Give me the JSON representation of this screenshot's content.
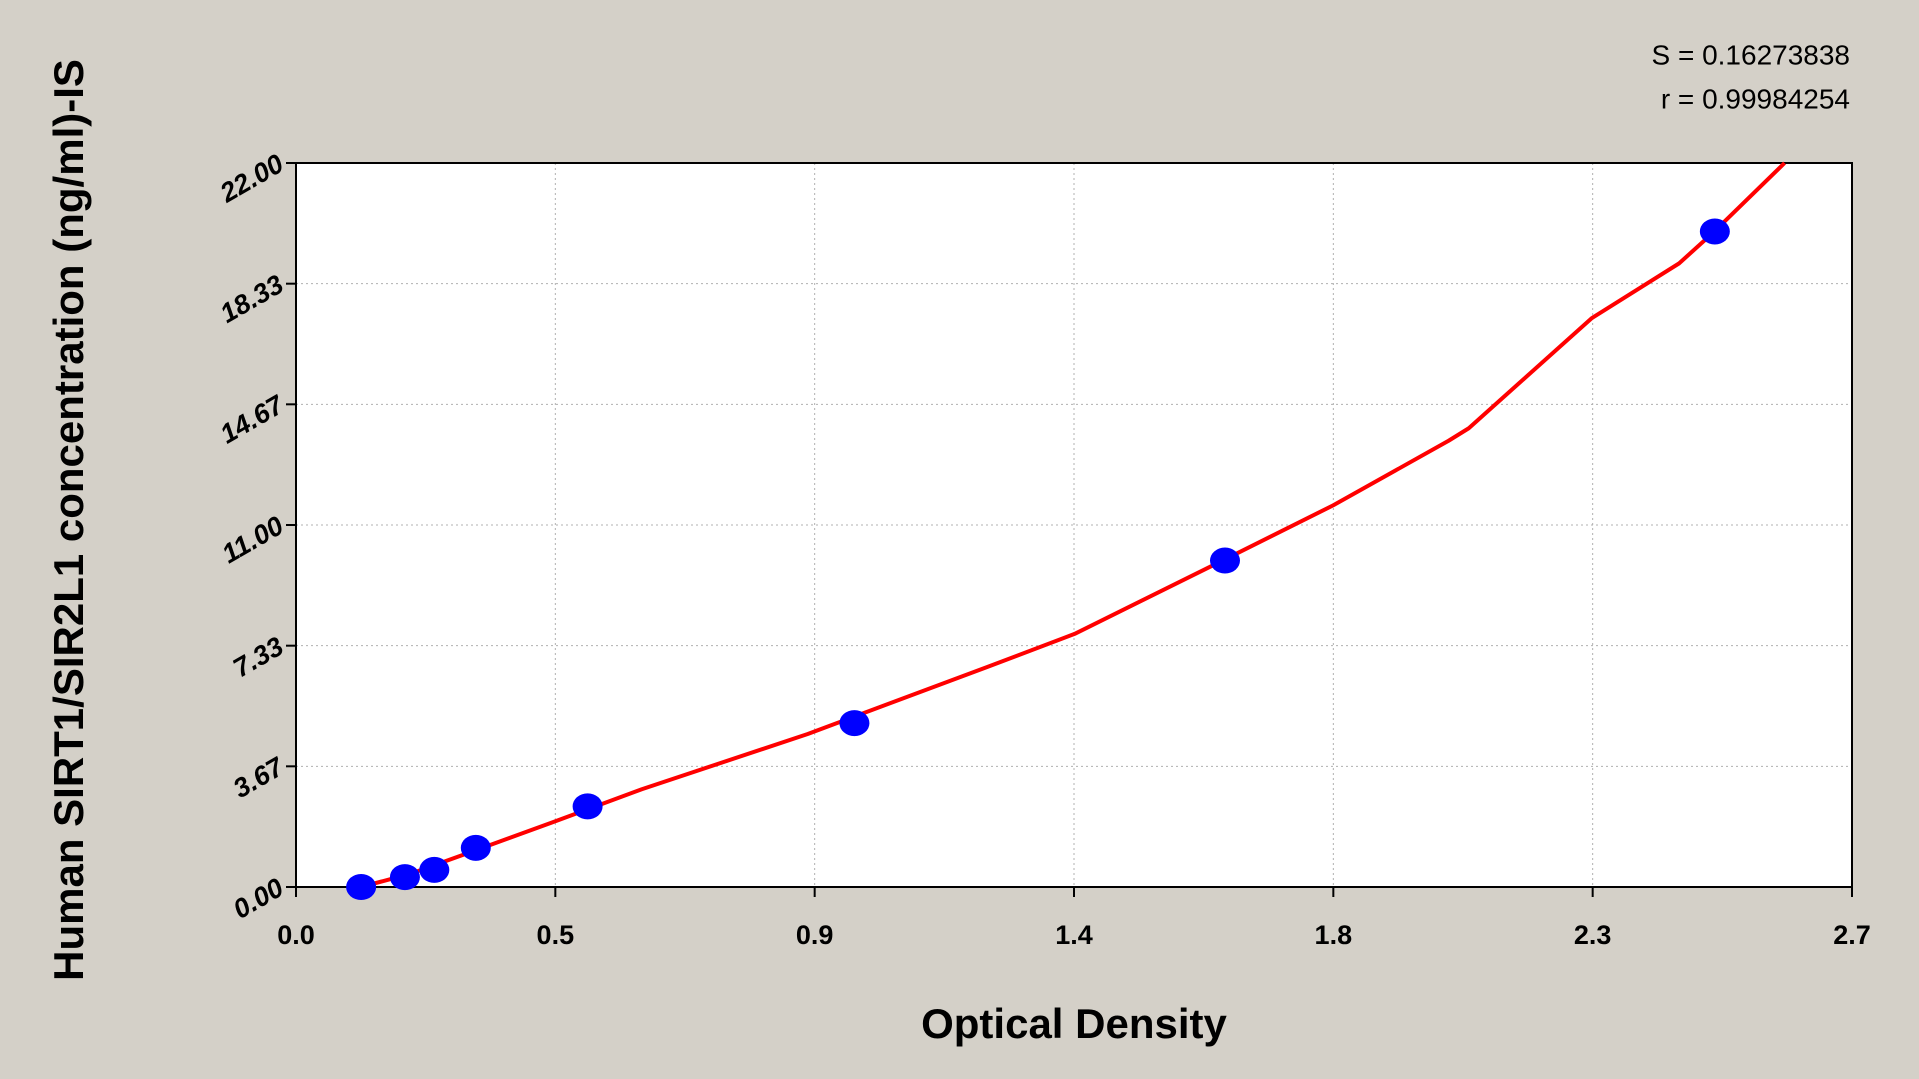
{
  "chart_data": {
    "type": "scatter",
    "annotations": [
      "S = 0.16273838",
      "r = 0.99984254"
    ],
    "x_label": "Optical Density",
    "y_label": "Human SIRT1/SIR2L1 concentration (ng/ml)-IS",
    "xlim": [
      0,
      2.7
    ],
    "xticks": [
      {
        "value": 0,
        "label": "0.0"
      },
      {
        "value": 0.45,
        "label": "0.5"
      },
      0.9,
      {
        "value": 1.35,
        "label": "1.4"
      },
      1.8,
      {
        "value": 2.25,
        "label": "2.3"
      },
      2.7
    ],
    "ylim": [
      0,
      22
    ],
    "yticks": [
      {
        "value": 0,
        "label": "0.00"
      },
      {
        "value": 3.667,
        "label": "3.67"
      },
      {
        "value": 7.333,
        "label": "7.33"
      },
      {
        "value": 11,
        "label": "11.00"
      },
      {
        "value": 14.667,
        "label": "14.67"
      },
      {
        "value": 18.333,
        "label": "18.33"
      },
      {
        "value": 22,
        "label": "22.00"
      }
    ],
    "grid": true,
    "series": [
      {
        "type": "scatter",
        "color": "#0000ff",
        "x": [
          0.113,
          0.189,
          0.24,
          0.312,
          0.506,
          0.969,
          1.612,
          2.462
        ],
        "values": [
          0,
          0.3,
          0.52,
          1.19,
          2.45,
          4.98,
          9.92,
          19.92
        ]
      },
      {
        "type": "line",
        "color": "#ff0000",
        "x": [
          0.113,
          0.2,
          0.3,
          0.446,
          0.6,
          0.888,
          1.2,
          1.351,
          1.6,
          1.8,
          2.0,
          2.035,
          2.248,
          2.4,
          2.46,
          2.583
        ],
        "values": [
          0,
          0.41,
          1.04,
          1.97,
          2.97,
          4.65,
          6.69,
          7.69,
          9.85,
          11.6,
          13.56,
          13.94,
          17.28,
          18.95,
          19.9,
          22
        ]
      }
    ]
  }
}
